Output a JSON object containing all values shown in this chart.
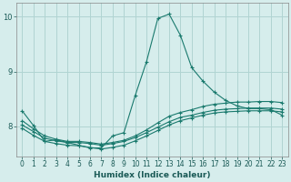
{
  "xlabel": "Humidex (Indice chaleur)",
  "background_color": "#d6edec",
  "grid_color": "#b0d4d2",
  "line_color": "#1a7a6e",
  "xlim": [
    -0.5,
    23.5
  ],
  "ylim": [
    7.45,
    10.25
  ],
  "yticks": [
    8,
    9,
    10
  ],
  "xticks": [
    0,
    1,
    2,
    3,
    4,
    5,
    6,
    7,
    8,
    9,
    10,
    11,
    12,
    13,
    14,
    15,
    16,
    17,
    18,
    19,
    20,
    21,
    22,
    23
  ],
  "series": [
    {
      "x": [
        0,
        1,
        2,
        3,
        4,
        5,
        6,
        7,
        8,
        9,
        10,
        11,
        12,
        13,
        14,
        15,
        16,
        17,
        18,
        19,
        20,
        21,
        22,
        23
      ],
      "y": [
        8.28,
        8.01,
        7.72,
        7.75,
        7.7,
        7.65,
        7.6,
        7.6,
        7.82,
        7.88,
        8.56,
        9.18,
        9.97,
        10.05,
        9.66,
        9.07,
        8.82,
        8.62,
        8.47,
        8.37,
        8.32,
        8.32,
        8.3,
        8.2
      ]
    },
    {
      "x": [
        0,
        1,
        2,
        3,
        4,
        5,
        6,
        7,
        8,
        9,
        10,
        11,
        12,
        13,
        14,
        15,
        16,
        17,
        18,
        19,
        20,
        21,
        22,
        23
      ],
      "y": [
        8.1,
        7.95,
        7.82,
        7.76,
        7.72,
        7.72,
        7.7,
        7.67,
        7.7,
        7.74,
        7.82,
        7.93,
        8.06,
        8.18,
        8.25,
        8.3,
        8.36,
        8.4,
        8.42,
        8.44,
        8.44,
        8.45,
        8.45,
        8.43
      ]
    },
    {
      "x": [
        0,
        1,
        2,
        3,
        4,
        5,
        6,
        7,
        8,
        9,
        10,
        11,
        12,
        13,
        14,
        15,
        16,
        17,
        18,
        19,
        20,
        21,
        22,
        23
      ],
      "y": [
        8.02,
        7.9,
        7.78,
        7.73,
        7.7,
        7.7,
        7.68,
        7.65,
        7.68,
        7.72,
        7.79,
        7.88,
        7.98,
        8.08,
        8.16,
        8.2,
        8.25,
        8.29,
        8.31,
        8.32,
        8.33,
        8.33,
        8.33,
        8.31
      ]
    },
    {
      "x": [
        0,
        1,
        2,
        3,
        4,
        5,
        6,
        7,
        8,
        9,
        10,
        11,
        12,
        13,
        14,
        15,
        16,
        17,
        18,
        19,
        20,
        21,
        22,
        23
      ],
      "y": [
        7.96,
        7.83,
        7.72,
        7.68,
        7.65,
        7.64,
        7.61,
        7.58,
        7.61,
        7.65,
        7.73,
        7.82,
        7.92,
        8.02,
        8.1,
        8.15,
        8.2,
        8.24,
        8.26,
        8.27,
        8.28,
        8.28,
        8.28,
        8.26
      ]
    }
  ]
}
